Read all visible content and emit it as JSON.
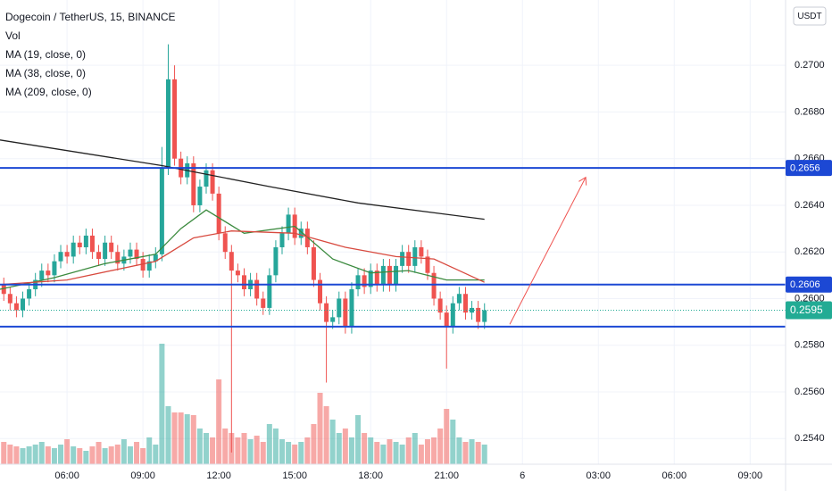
{
  "chart_data": {
    "type": "candlestick",
    "title": "Dogecoin / TetherUS, 15, BINANCE",
    "volume_label": "Vol",
    "currency": "USDT",
    "up_color": "#26a69a",
    "down_color": "#ef5350",
    "xlim": [
      3.35,
      34.4
    ],
    "ylim": [
      0.2529,
      0.2728
    ],
    "xticks": [
      {
        "value": 6,
        "label": "06:00"
      },
      {
        "value": 9,
        "label": "09:00"
      },
      {
        "value": 12,
        "label": "12:00"
      },
      {
        "value": 15,
        "label": "15:00"
      },
      {
        "value": 18,
        "label": "18:00"
      },
      {
        "value": 21,
        "label": "21:00"
      },
      {
        "value": 24,
        "label": "6"
      },
      {
        "value": 27,
        "label": "03:00"
      },
      {
        "value": 30,
        "label": "06:00"
      },
      {
        "value": 33,
        "label": "09:00"
      }
    ],
    "yticks": [
      {
        "value": 0.254,
        "label": "0.2540"
      },
      {
        "value": 0.256,
        "label": "0.2560"
      },
      {
        "value": 0.258,
        "label": "0.2580"
      },
      {
        "value": 0.26,
        "label": "0.2600"
      },
      {
        "value": 0.262,
        "label": "0.2620"
      },
      {
        "value": 0.264,
        "label": "0.2640"
      },
      {
        "value": 0.266,
        "label": "0.2660"
      },
      {
        "value": 0.268,
        "label": "0.2680"
      },
      {
        "value": 0.27,
        "label": "0.2700"
      }
    ],
    "x": [
      3.5,
      3.75,
      4,
      4.25,
      4.5,
      4.75,
      5,
      5.25,
      5.5,
      5.75,
      6,
      6.25,
      6.5,
      6.75,
      7,
      7.25,
      7.5,
      7.75,
      8,
      8.25,
      8.5,
      8.75,
      9,
      9.25,
      9.5,
      9.75,
      10,
      10.25,
      10.5,
      10.75,
      11,
      11.25,
      11.5,
      11.75,
      12,
      12.25,
      12.5,
      12.75,
      13,
      13.25,
      13.5,
      13.75,
      14,
      14.25,
      14.5,
      14.75,
      15,
      15.25,
      15.5,
      15.75,
      16,
      16.25,
      16.5,
      16.75,
      17,
      17.25,
      17.5,
      17.75,
      18,
      18.25,
      18.5,
      18.75,
      19,
      19.25,
      19.5,
      19.75,
      20,
      20.25,
      20.5,
      20.75,
      21,
      21.25,
      21.5,
      21.75,
      22,
      22.25,
      22.5
    ],
    "open": [
      0.2606,
      0.2602,
      0.2598,
      0.2595,
      0.26,
      0.2604,
      0.2608,
      0.2612,
      0.261,
      0.2616,
      0.262,
      0.2618,
      0.2624,
      0.2622,
      0.2627,
      0.262,
      0.2617,
      0.2624,
      0.262,
      0.2615,
      0.2618,
      0.2621,
      0.2617,
      0.2612,
      0.2616,
      0.2619,
      0.2656,
      0.2694,
      0.266,
      0.2652,
      0.2658,
      0.264,
      0.2648,
      0.2655,
      0.2645,
      0.2628,
      0.262,
      0.2612,
      0.261,
      0.2604,
      0.2608,
      0.26,
      0.2596,
      0.261,
      0.2622,
      0.2628,
      0.2636,
      0.2626,
      0.263,
      0.2622,
      0.2608,
      0.2598,
      0.259,
      0.2592,
      0.26,
      0.2588,
      0.2604,
      0.261,
      0.2605,
      0.2612,
      0.2606,
      0.2614,
      0.2606,
      0.2614,
      0.262,
      0.2614,
      0.2622,
      0.2618,
      0.2611,
      0.26,
      0.2594,
      0.2588,
      0.2598,
      0.2602,
      0.2594,
      0.2596,
      0.259
    ],
    "high": [
      0.2609,
      0.2605,
      0.2601,
      0.2603,
      0.2607,
      0.2611,
      0.2615,
      0.2615,
      0.2619,
      0.2623,
      0.2623,
      0.2627,
      0.2627,
      0.263,
      0.263,
      0.2623,
      0.2627,
      0.2627,
      0.2623,
      0.2621,
      0.2624,
      0.2624,
      0.262,
      0.2619,
      0.2622,
      0.2665,
      0.2709,
      0.27,
      0.2663,
      0.2661,
      0.2661,
      0.2651,
      0.2658,
      0.2658,
      0.2648,
      0.2631,
      0.2623,
      0.2615,
      0.2613,
      0.2611,
      0.2611,
      0.2603,
      0.2613,
      0.2625,
      0.2631,
      0.2639,
      0.2639,
      0.2633,
      0.2633,
      0.2625,
      0.2611,
      0.2601,
      0.2595,
      0.2603,
      0.2603,
      0.2607,
      0.2613,
      0.2613,
      0.2615,
      0.2615,
      0.2617,
      0.2617,
      0.2617,
      0.2623,
      0.2623,
      0.2625,
      0.2625,
      0.2621,
      0.2614,
      0.2603,
      0.2597,
      0.2601,
      0.2605,
      0.2605,
      0.2599,
      0.2599,
      0.2598
    ],
    "low": [
      0.2599,
      0.2595,
      0.2592,
      0.2592,
      0.2597,
      0.2601,
      0.2605,
      0.2607,
      0.2607,
      0.2613,
      0.2615,
      0.2615,
      0.2619,
      0.2619,
      0.2617,
      0.2614,
      0.2614,
      0.2617,
      0.2612,
      0.2612,
      0.2615,
      0.2614,
      0.2609,
      0.2609,
      0.2613,
      0.2616,
      0.2653,
      0.2657,
      0.2649,
      0.2649,
      0.2637,
      0.2637,
      0.2645,
      0.2642,
      0.2625,
      0.2617,
      0.2534,
      0.2607,
      0.2601,
      0.2601,
      0.2597,
      0.2593,
      0.2593,
      0.2607,
      0.2619,
      0.2625,
      0.2623,
      0.2623,
      0.2619,
      0.2605,
      0.2595,
      0.2564,
      0.2587,
      0.2589,
      0.2585,
      0.2585,
      0.2601,
      0.2602,
      0.2602,
      0.2603,
      0.2603,
      0.2603,
      0.2603,
      0.2611,
      0.2611,
      0.2611,
      0.2615,
      0.2608,
      0.2597,
      0.2591,
      0.257,
      0.2585,
      0.2595,
      0.2591,
      0.2591,
      0.2587,
      0.2587
    ],
    "close": [
      0.2602,
      0.2598,
      0.2595,
      0.26,
      0.2604,
      0.2608,
      0.2612,
      0.261,
      0.2616,
      0.262,
      0.2618,
      0.2624,
      0.2622,
      0.2627,
      0.262,
      0.2617,
      0.2624,
      0.262,
      0.2615,
      0.2618,
      0.2621,
      0.2617,
      0.2612,
      0.2616,
      0.2619,
      0.2656,
      0.2694,
      0.266,
      0.2652,
      0.2658,
      0.264,
      0.2648,
      0.2655,
      0.2645,
      0.2628,
      0.262,
      0.2612,
      0.261,
      0.2604,
      0.2608,
      0.26,
      0.2596,
      0.261,
      0.2622,
      0.2628,
      0.2636,
      0.2626,
      0.263,
      0.2622,
      0.2608,
      0.2598,
      0.259,
      0.2592,
      0.26,
      0.2588,
      0.2604,
      0.261,
      0.2605,
      0.2612,
      0.2606,
      0.2614,
      0.2606,
      0.2614,
      0.262,
      0.2614,
      0.2622,
      0.2618,
      0.2611,
      0.26,
      0.2594,
      0.2588,
      0.2598,
      0.2602,
      0.2594,
      0.2596,
      0.259,
      0.2595
    ],
    "volume": [
      25,
      22,
      20,
      18,
      20,
      22,
      25,
      20,
      18,
      22,
      28,
      20,
      18,
      15,
      20,
      25,
      18,
      20,
      22,
      28,
      20,
      25,
      18,
      30,
      22,
      135,
      65,
      58,
      58,
      56,
      55,
      40,
      35,
      30,
      95,
      40,
      35,
      30,
      35,
      28,
      32,
      25,
      45,
      40,
      28,
      25,
      22,
      25,
      30,
      45,
      80,
      65,
      50,
      35,
      40,
      30,
      55,
      35,
      30,
      25,
      22,
      28,
      25,
      22,
      30,
      35,
      22,
      28,
      30,
      40,
      62,
      50,
      30,
      25,
      28,
      25,
      22
    ],
    "series": [
      {
        "name": "MA (19, close, 0)",
        "color": "#3b8a3e",
        "x": [
          3.35,
          5.5,
          7.5,
          9.5,
          10.5,
          11.5,
          13,
          15,
          16.5,
          18,
          19.5,
          21,
          22.5
        ],
        "values": [
          0.2604,
          0.2609,
          0.2615,
          0.2619,
          0.263,
          0.2638,
          0.2628,
          0.2631,
          0.2617,
          0.2611,
          0.2612,
          0.2608,
          0.2608
        ]
      },
      {
        "name": "MA (38, close, 0)",
        "color": "#d84a3f",
        "x": [
          3.35,
          6,
          9.5,
          11,
          12.5,
          15,
          17,
          19,
          20.5,
          22.5
        ],
        "values": [
          0.2606,
          0.2608,
          0.2616,
          0.2626,
          0.2629,
          0.2628,
          0.2622,
          0.2618,
          0.2617,
          0.2607
        ]
      },
      {
        "name": "MA (209, close, 0)",
        "color": "#222222",
        "x": [
          3.35,
          9.75,
          14,
          17.5,
          22.5
        ],
        "values": [
          0.2668,
          0.2657,
          0.2648,
          0.2641,
          0.2634
        ]
      }
    ],
    "levels": [
      {
        "value": 0.2656,
        "label": "0.2656"
      },
      {
        "value": 0.2606,
        "label": "0.2606"
      },
      {
        "value": 0.2588
      }
    ],
    "level_color": "#1c48d4",
    "last_price": {
      "value": 0.2595,
      "label": "0.2595",
      "color": "#22ab94"
    },
    "arrow": {
      "x": [
        23.5,
        26.5
      ],
      "y": [
        0.2589,
        0.2652
      ],
      "color": "#ef5350"
    }
  }
}
